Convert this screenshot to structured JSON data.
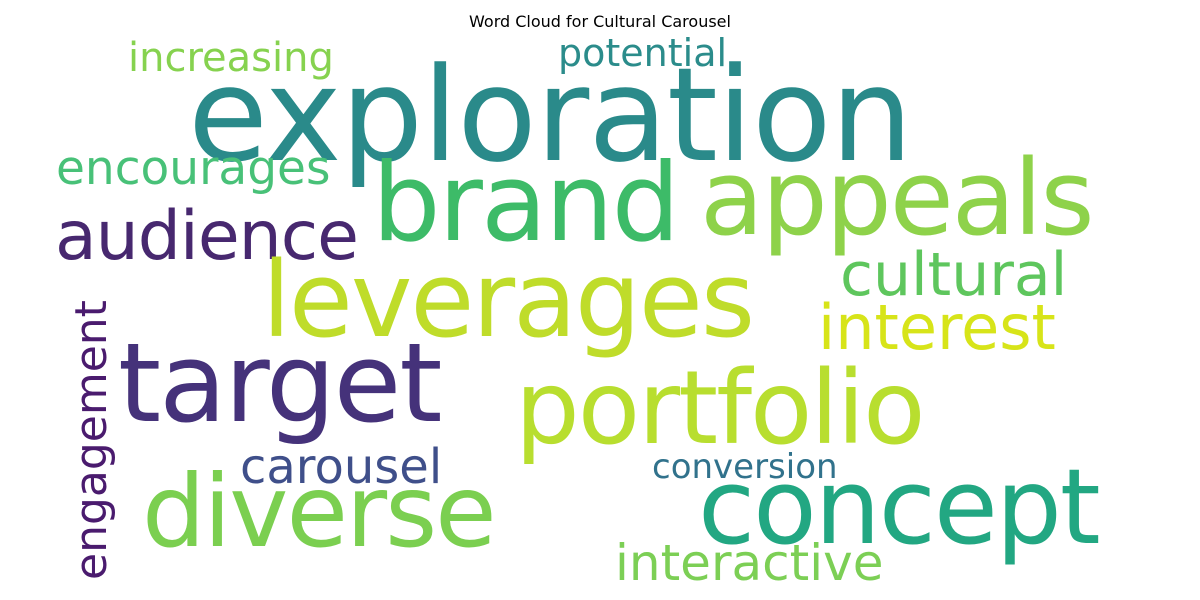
{
  "title": "Word Cloud for Cultural Carousel",
  "words": {
    "exploration": {
      "text": "exploration",
      "color": "#2a8a8a"
    },
    "brand": {
      "text": "brand",
      "color": "#3dbb68"
    },
    "appeals": {
      "text": "appeals",
      "color": "#8ed24a"
    },
    "leverages": {
      "text": "leverages",
      "color": "#bfdc2a"
    },
    "target": {
      "text": "target",
      "color": "#45327a"
    },
    "portfolio": {
      "text": "portfolio",
      "color": "#b8de2f"
    },
    "diverse": {
      "text": "diverse",
      "color": "#7bcf50"
    },
    "concept": {
      "text": "concept",
      "color": "#22a782"
    },
    "audience": {
      "text": "audience",
      "color": "#47286f"
    },
    "cultural": {
      "text": "cultural",
      "color": "#5ec65d"
    },
    "interest": {
      "text": "interest",
      "color": "#d7e419"
    },
    "encourages": {
      "text": "encourages",
      "color": "#48c178"
    },
    "increasing": {
      "text": "increasing",
      "color": "#86d24f"
    },
    "potential": {
      "text": "potential",
      "color": "#2b8c8b"
    },
    "carousel": {
      "text": "carousel",
      "color": "#3f4f8a"
    },
    "conversion": {
      "text": "conversion",
      "color": "#31728c"
    },
    "interactive": {
      "text": "interactive",
      "color": "#7ccf55"
    },
    "engagement": {
      "text": "engagement",
      "color": "#4a1b6e"
    }
  }
}
